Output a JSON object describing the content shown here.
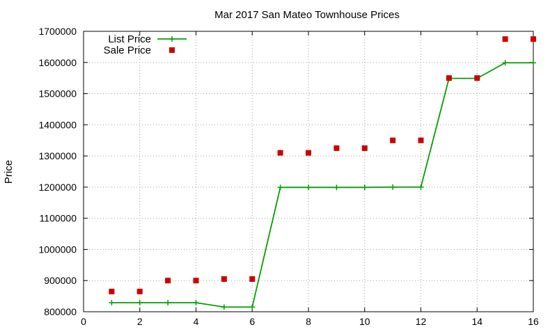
{
  "chart_data": {
    "type": "line",
    "title": "Mar 2017 San Mateo Townhouse Prices",
    "xlabel": "",
    "ylabel": "Price",
    "xlim": [
      0,
      16
    ],
    "ylim": [
      800000,
      1700000
    ],
    "x_ticks": [
      0,
      2,
      4,
      6,
      8,
      10,
      12,
      14,
      16
    ],
    "y_ticks": [
      800000,
      900000,
      1000000,
      1100000,
      1200000,
      1300000,
      1400000,
      1500000,
      1600000,
      1700000
    ],
    "grid": true,
    "legend_position": "top-left",
    "series": [
      {
        "name": "List Price",
        "style": "linespoints",
        "marker": "plus",
        "color": "#00a000",
        "x": [
          1,
          2,
          3,
          4,
          5,
          6,
          7,
          8,
          9,
          10,
          11,
          12,
          13,
          14,
          15,
          16
        ],
        "y": [
          829000,
          829000,
          829000,
          829000,
          815000,
          815000,
          1199000,
          1199000,
          1199000,
          1199000,
          1200000,
          1200000,
          1549000,
          1549000,
          1599000,
          1599000
        ]
      },
      {
        "name": "Sale Price",
        "style": "points",
        "marker": "square",
        "color": "#cc0000",
        "x": [
          1,
          2,
          3,
          4,
          5,
          6,
          7,
          8,
          9,
          10,
          11,
          12,
          13,
          14,
          15,
          16
        ],
        "y": [
          865000,
          865000,
          900000,
          900000,
          905000,
          905000,
          1310000,
          1310000,
          1325000,
          1325000,
          1350000,
          1350000,
          1550000,
          1550000,
          1675000,
          1675000
        ]
      }
    ]
  }
}
